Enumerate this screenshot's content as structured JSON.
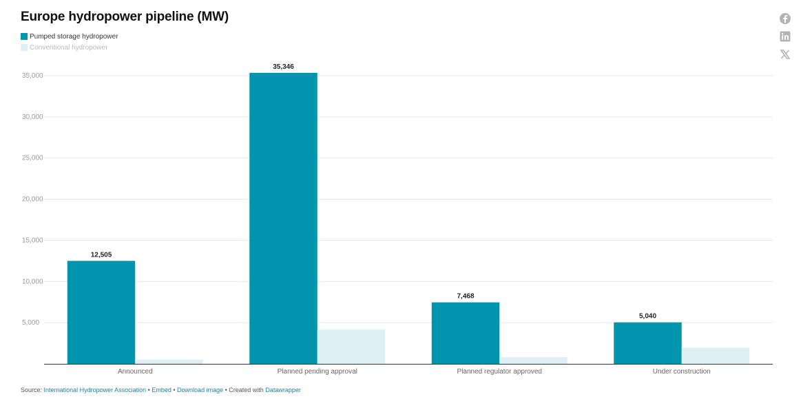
{
  "title": "Europe hydropower pipeline (MW)",
  "legend": [
    {
      "label": "Pumped storage hydropower",
      "color": "#0095ae"
    },
    {
      "label": "Conventional hydropower",
      "color": "#dff0f5"
    }
  ],
  "share_icons": [
    "facebook-icon",
    "linkedin-icon",
    "x-icon"
  ],
  "chart_data": {
    "type": "bar",
    "title": "Europe hydropower pipeline (MW)",
    "categories": [
      "Announced",
      "Planned pending approval",
      "Planned regulator approved",
      "Under construction"
    ],
    "series": [
      {
        "name": "Pumped storage hydropower",
        "values": [
          12505,
          35346,
          7468,
          5040
        ],
        "color": "#0095ae",
        "labeled": true
      },
      {
        "name": "Conventional hydropower",
        "values": [
          520,
          4150,
          800,
          1950
        ],
        "color": "#dff0f5",
        "labeled": false
      }
    ],
    "data_labels": [
      "12,505",
      "35,346",
      "7,468",
      "5,040"
    ],
    "yticks": [
      5000,
      10000,
      15000,
      20000,
      25000,
      30000,
      35000
    ],
    "ytick_labels": [
      "5,000",
      "10,000",
      "15,000",
      "20,000",
      "25,000",
      "30,000",
      "35,000"
    ],
    "ylim": [
      0,
      35000
    ],
    "grid": true,
    "legend_position": "top-left"
  },
  "footer": {
    "source_prefix": "Source:",
    "source_link": "International Hydropower Association",
    "sep1": "•",
    "embed": "Embed",
    "sep2": "•",
    "download": "Download image",
    "sep3": "•",
    "created_prefix": "Created with",
    "created_link": "Datawrapper"
  }
}
